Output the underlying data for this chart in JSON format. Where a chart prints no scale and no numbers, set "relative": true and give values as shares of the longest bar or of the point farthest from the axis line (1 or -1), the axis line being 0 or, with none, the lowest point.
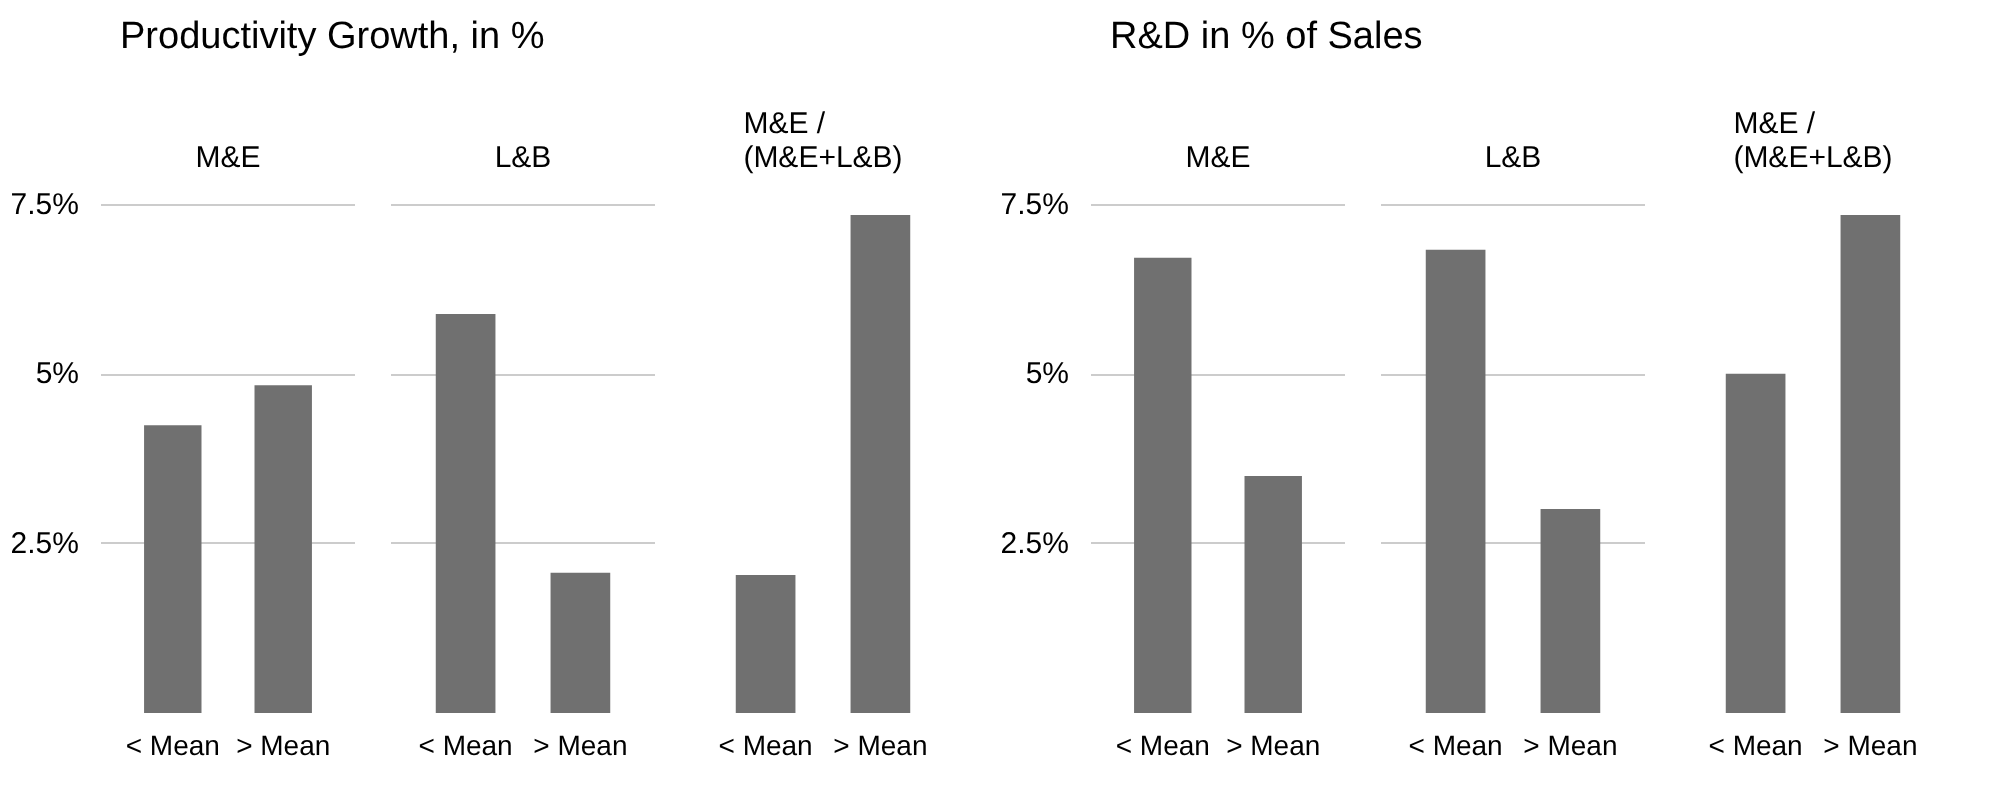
{
  "chart_data": [
    {
      "type": "bar",
      "title": "Productivity Growth, in %",
      "subtitle": "M&E",
      "categories": [
        "< Mean",
        "> Mean"
      ],
      "values": [
        4.25,
        4.84
      ],
      "color": "#707070",
      "ylim": [
        0,
        7.5
      ],
      "yticks": [
        {
          "value": 2.5,
          "label": "2.5%"
        },
        {
          "value": 5,
          "label": "5%"
        },
        {
          "value": 7.5,
          "label": "7.5%"
        }
      ],
      "grid": "y"
    },
    {
      "type": "bar",
      "subtitle": "L&B",
      "categories": [
        "< Mean",
        "> Mean"
      ],
      "values": [
        5.89,
        2.07
      ],
      "color": "#707070",
      "ylim": [
        0,
        7.5
      ],
      "yticks": [
        {
          "value": 2.5,
          "label": null
        },
        {
          "value": 5,
          "label": null
        },
        {
          "value": 7.5,
          "label": null
        }
      ],
      "grid": "y",
      "tick_labels": "x"
    },
    {
      "type": "bar",
      "subtitle": "M&E /\n(M&E+L&B)",
      "categories": [
        "< Mean",
        "> Mean"
      ],
      "values": [
        0.277,
        1
      ],
      "color": "#707070",
      "relative": true
    },
    {
      "type": "bar",
      "title": "R&D in % of Sales",
      "subtitle": "M&E",
      "categories": [
        "< Mean",
        "> Mean"
      ],
      "values": [
        6.72,
        3.5
      ],
      "color": "#707070",
      "ylim": [
        0,
        7.5
      ],
      "yticks": [
        {
          "value": 2.5,
          "label": "2.5%"
        },
        {
          "value": 5,
          "label": "5%"
        },
        {
          "value": 7.5,
          "label": "7.5%"
        }
      ],
      "grid": "y"
    },
    {
      "type": "bar",
      "subtitle": "L&B",
      "categories": [
        "< Mean",
        "> Mean"
      ],
      "values": [
        6.84,
        3.01
      ],
      "color": "#707070",
      "ylim": [
        0,
        7.5
      ],
      "yticks": [
        {
          "value": 2.5,
          "label": null
        },
        {
          "value": 5,
          "label": null
        },
        {
          "value": 7.5,
          "label": null
        }
      ],
      "grid": "y",
      "tick_labels": "x"
    },
    {
      "type": "bar",
      "subtitle": "M&E /\n(M&E+L&B)",
      "categories": [
        "< Mean",
        "> Mean"
      ],
      "values": [
        0.681,
        1
      ],
      "color": "#707070",
      "relative": true
    }
  ]
}
